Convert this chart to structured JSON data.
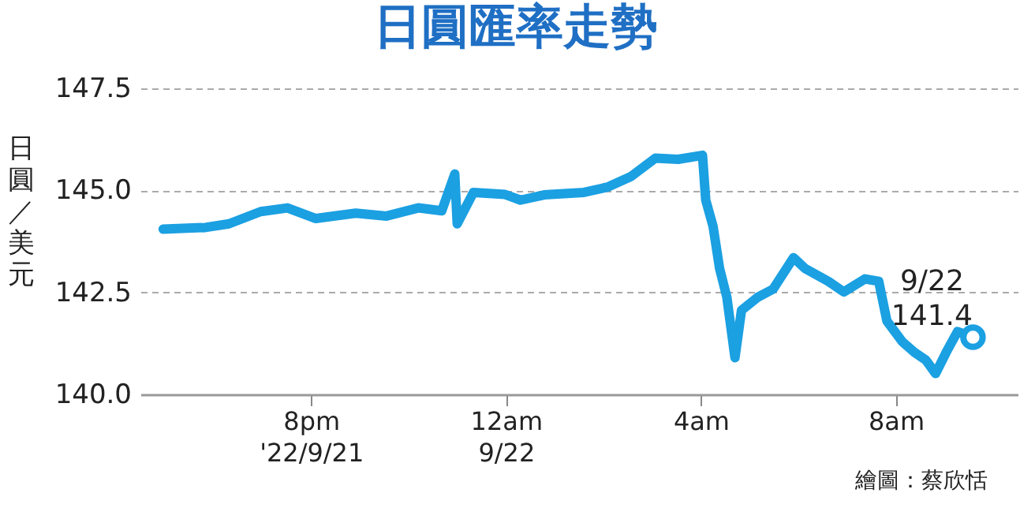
{
  "chart_data": {
    "type": "line",
    "title": "日圓匯率走勢",
    "ylabel": "日圓／美元",
    "x": [
      "2022-09-21T16:58",
      "2022-09-21T17:50",
      "2022-09-21T18:19",
      "2022-09-21T18:58",
      "2022-09-21T19:31",
      "2022-09-21T20:06",
      "2022-09-21T20:55",
      "2022-09-21T21:33",
      "2022-09-21T22:12",
      "2022-09-21T22:41",
      "2022-09-21T22:57",
      "2022-09-21T23:00",
      "2022-09-21T23:20",
      "2022-09-21T23:59",
      "2022-09-22T00:18",
      "2022-09-22T00:47",
      "2022-09-22T01:36",
      "2022-09-22T02:05",
      "2022-09-22T02:34",
      "2022-09-22T03:04",
      "2022-09-22T03:32",
      "2022-09-22T04:02",
      "2022-09-22T04:06",
      "2022-09-22T04:15",
      "2022-09-22T04:23",
      "2022-09-22T04:32",
      "2022-09-22T04:42",
      "2022-09-22T04:50",
      "2022-09-22T05:10",
      "2022-09-22T05:29",
      "2022-09-22T05:54",
      "2022-09-22T06:08",
      "2022-09-22T06:37",
      "2022-09-22T06:56",
      "2022-09-22T07:22",
      "2022-09-22T07:39",
      "2022-09-22T07:49",
      "2022-09-22T08:08",
      "2022-09-22T08:23",
      "2022-09-22T08:37",
      "2022-09-22T08:49",
      "2022-09-22T09:02",
      "2022-09-22T09:16",
      "2022-09-22T09:35"
    ],
    "series": [
      {
        "color": "#1ba0e2",
        "values": [
          144.05,
          144.09,
          144.18,
          144.48,
          144.57,
          144.31,
          144.44,
          144.37,
          144.57,
          144.5,
          145.4,
          144.18,
          144.95,
          144.9,
          144.76,
          144.89,
          144.95,
          145.08,
          145.34,
          145.79,
          145.76,
          145.86,
          144.76,
          144.12,
          143.09,
          142.38,
          140.9,
          142.06,
          142.38,
          142.58,
          143.35,
          143.09,
          142.77,
          142.51,
          142.83,
          142.77,
          141.8,
          141.29,
          141.03,
          140.84,
          140.51,
          141.03,
          141.54,
          141.4
        ]
      }
    ],
    "xlim": [
      "2022-09-21T16:30",
      "2022-09-22T10:30"
    ],
    "xticks": [
      {
        "value": "2022-09-21T20:00",
        "label": "8pm\n'22/9/21"
      },
      {
        "value": "2022-09-22T00:00",
        "label": "12am\n9/22"
      },
      {
        "value": "2022-09-22T04:00",
        "label": "4am"
      },
      {
        "value": "2022-09-22T08:00",
        "label": "8am"
      }
    ],
    "ylim": [
      140,
      147.5
    ],
    "yticks": [
      {
        "value": 140,
        "label": "140.0"
      },
      {
        "value": 142.5,
        "label": "142.5"
      },
      {
        "value": 145,
        "label": "145.0"
      },
      {
        "value": 147.5,
        "label": "147.5"
      }
    ],
    "grid": "y",
    "annotations": [
      {
        "text": "9/22\n141.4",
        "x": "2022-09-22T09:35",
        "y": 141.4
      },
      "繪圖：蔡欣恬"
    ]
  }
}
